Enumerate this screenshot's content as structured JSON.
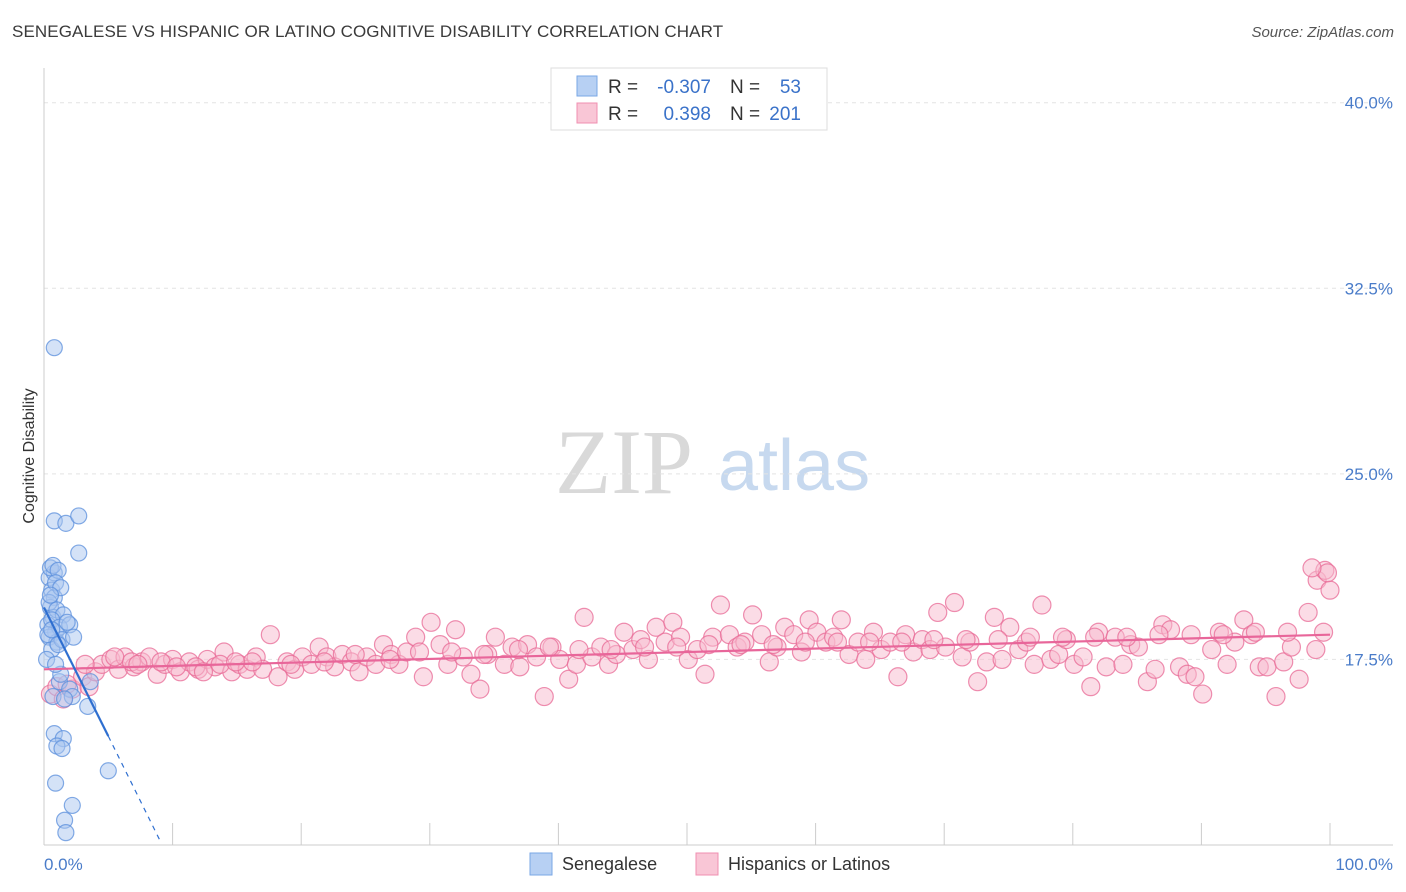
{
  "chart_data": {
    "type": "scatter",
    "title": "SENEGALESE VS HISPANIC OR LATINO COGNITIVE DISABILITY CORRELATION CHART",
    "source": "Source: ZipAtlas.com",
    "watermark": {
      "zip": "ZIP",
      "atlas": "atlas"
    },
    "xlabel": "",
    "ylabel": "Cognitive Disability",
    "xlim": [
      0,
      100
    ],
    "ylim": [
      10.0,
      41.0
    ],
    "x_tick_labels": {
      "min": "0.0%",
      "max": "100.0%"
    },
    "y_ticks": [
      {
        "value": 17.5,
        "label": "17.5%"
      },
      {
        "value": 25.0,
        "label": "25.0%"
      },
      {
        "value": 32.5,
        "label": "32.5%"
      },
      {
        "value": 40.0,
        "label": "40.0%"
      }
    ],
    "legend": {
      "rows": [
        {
          "r_label": "R =",
          "r_value": "-0.307",
          "n_label": "N =",
          "n_value": "53",
          "color": "#7aa7e6"
        },
        {
          "r_label": "R =",
          "r_value": "0.398",
          "n_label": "N =",
          "n_value": "201",
          "color": "#f08fb0"
        }
      ]
    },
    "series": [
      {
        "name": "Senegalese",
        "color": "#5b8fdc",
        "fill": "#a9c5f0",
        "trend": {
          "x0": 0.0,
          "y0": 19.6,
          "x1": 5.0,
          "y1": 14.4,
          "dash_to_x": 9.0,
          "dash_to_y": 10.2
        },
        "points": [
          [
            0.4,
            20.8
          ],
          [
            0.6,
            20.3
          ],
          [
            0.8,
            20.0
          ],
          [
            0.5,
            19.6
          ],
          [
            0.7,
            19.2
          ],
          [
            0.3,
            18.9
          ],
          [
            0.9,
            18.6
          ],
          [
            0.4,
            18.4
          ],
          [
            1.0,
            18.2
          ],
          [
            0.6,
            17.9
          ],
          [
            0.2,
            17.5
          ],
          [
            0.8,
            21.0
          ],
          [
            0.5,
            21.2
          ],
          [
            0.7,
            21.3
          ],
          [
            1.1,
            21.1
          ],
          [
            0.9,
            20.6
          ],
          [
            1.3,
            20.4
          ],
          [
            0.4,
            19.8
          ],
          [
            1.0,
            19.5
          ],
          [
            1.5,
            19.3
          ],
          [
            0.6,
            19.1
          ],
          [
            1.2,
            18.8
          ],
          [
            0.3,
            18.5
          ],
          [
            1.4,
            18.3
          ],
          [
            2.0,
            18.9
          ],
          [
            2.3,
            18.4
          ],
          [
            0.8,
            23.1
          ],
          [
            1.7,
            23.0
          ],
          [
            2.7,
            23.3
          ],
          [
            2.7,
            21.8
          ],
          [
            0.8,
            30.1
          ],
          [
            0.7,
            16.0
          ],
          [
            1.2,
            16.6
          ],
          [
            2.0,
            16.3
          ],
          [
            2.2,
            16.0
          ],
          [
            1.6,
            15.9
          ],
          [
            3.6,
            16.6
          ],
          [
            3.4,
            15.6
          ],
          [
            0.8,
            14.5
          ],
          [
            1.5,
            14.3
          ],
          [
            1.0,
            14.0
          ],
          [
            1.4,
            13.9
          ],
          [
            5.0,
            13.0
          ],
          [
            0.9,
            12.5
          ],
          [
            2.2,
            11.6
          ],
          [
            1.6,
            11.0
          ],
          [
            1.7,
            10.5
          ],
          [
            1.1,
            18.1
          ],
          [
            0.5,
            20.1
          ],
          [
            1.8,
            19.0
          ],
          [
            0.6,
            18.7
          ],
          [
            1.3,
            16.9
          ],
          [
            0.9,
            17.3
          ]
        ]
      },
      {
        "name": "Hispanics or Latinos",
        "color": "#e86a95",
        "fill": "#f7b9cd",
        "trend": {
          "x0": 0.0,
          "y0": 17.1,
          "x1": 100.0,
          "y1": 18.5
        },
        "points": [
          [
            0.5,
            16.1
          ],
          [
            1.0,
            16.4
          ],
          [
            1.5,
            15.9
          ],
          [
            2.2,
            16.3
          ],
          [
            3.0,
            16.8
          ],
          [
            3.5,
            16.4
          ],
          [
            4.0,
            17.0
          ],
          [
            4.5,
            17.3
          ],
          [
            5.2,
            17.5
          ],
          [
            5.8,
            17.1
          ],
          [
            6.3,
            17.6
          ],
          [
            7.0,
            17.2
          ],
          [
            7.6,
            17.4
          ],
          [
            8.2,
            17.6
          ],
          [
            8.8,
            16.9
          ],
          [
            9.4,
            17.3
          ],
          [
            10.0,
            17.5
          ],
          [
            10.6,
            17.0
          ],
          [
            11.3,
            17.4
          ],
          [
            12.0,
            17.1
          ],
          [
            12.7,
            17.5
          ],
          [
            13.3,
            17.2
          ],
          [
            14.0,
            17.8
          ],
          [
            14.6,
            17.0
          ],
          [
            15.2,
            17.3
          ],
          [
            15.8,
            17.1
          ],
          [
            16.5,
            17.6
          ],
          [
            17.0,
            17.1
          ],
          [
            17.6,
            18.5
          ],
          [
            18.2,
            16.8
          ],
          [
            18.9,
            17.4
          ],
          [
            19.5,
            17.1
          ],
          [
            20.1,
            17.6
          ],
          [
            20.8,
            17.3
          ],
          [
            21.4,
            18.0
          ],
          [
            22.0,
            17.6
          ],
          [
            22.6,
            17.2
          ],
          [
            23.2,
            17.7
          ],
          [
            23.9,
            17.4
          ],
          [
            24.5,
            17.0
          ],
          [
            25.1,
            17.6
          ],
          [
            25.8,
            17.3
          ],
          [
            26.4,
            18.1
          ],
          [
            27.0,
            17.7
          ],
          [
            27.6,
            17.3
          ],
          [
            28.2,
            17.8
          ],
          [
            28.9,
            18.4
          ],
          [
            29.5,
            16.8
          ],
          [
            30.1,
            19.0
          ],
          [
            30.8,
            18.1
          ],
          [
            31.4,
            17.3
          ],
          [
            32.0,
            18.7
          ],
          [
            32.6,
            17.6
          ],
          [
            33.2,
            16.9
          ],
          [
            33.9,
            16.3
          ],
          [
            34.5,
            17.7
          ],
          [
            35.1,
            18.4
          ],
          [
            35.8,
            17.3
          ],
          [
            36.4,
            18.0
          ],
          [
            37.0,
            17.2
          ],
          [
            37.6,
            18.1
          ],
          [
            38.3,
            17.6
          ],
          [
            38.9,
            16.0
          ],
          [
            39.5,
            18.0
          ],
          [
            40.1,
            17.5
          ],
          [
            40.8,
            16.7
          ],
          [
            41.4,
            17.3
          ],
          [
            42.0,
            19.2
          ],
          [
            42.6,
            17.6
          ],
          [
            43.3,
            18.0
          ],
          [
            43.9,
            17.3
          ],
          [
            44.5,
            17.7
          ],
          [
            45.1,
            18.6
          ],
          [
            45.8,
            17.9
          ],
          [
            46.4,
            18.3
          ],
          [
            47.0,
            17.5
          ],
          [
            47.6,
            18.8
          ],
          [
            48.3,
            18.2
          ],
          [
            48.9,
            19.0
          ],
          [
            49.5,
            18.4
          ],
          [
            50.1,
            17.5
          ],
          [
            50.8,
            17.9
          ],
          [
            51.4,
            16.9
          ],
          [
            52.0,
            18.4
          ],
          [
            52.6,
            19.7
          ],
          [
            53.3,
            18.5
          ],
          [
            53.9,
            18.0
          ],
          [
            54.5,
            18.2
          ],
          [
            55.1,
            19.3
          ],
          [
            55.8,
            18.5
          ],
          [
            56.4,
            17.4
          ],
          [
            57.0,
            18.0
          ],
          [
            57.6,
            18.8
          ],
          [
            58.3,
            18.5
          ],
          [
            58.9,
            17.8
          ],
          [
            59.5,
            19.1
          ],
          [
            60.1,
            18.6
          ],
          [
            60.8,
            18.2
          ],
          [
            61.4,
            18.4
          ],
          [
            62.0,
            19.1
          ],
          [
            62.6,
            17.7
          ],
          [
            63.3,
            18.2
          ],
          [
            63.9,
            17.5
          ],
          [
            64.5,
            18.6
          ],
          [
            65.1,
            17.9
          ],
          [
            65.8,
            18.2
          ],
          [
            66.4,
            16.8
          ],
          [
            67.0,
            18.5
          ],
          [
            67.6,
            17.8
          ],
          [
            68.3,
            18.3
          ],
          [
            68.9,
            17.9
          ],
          [
            69.5,
            19.4
          ],
          [
            70.1,
            18.0
          ],
          [
            70.8,
            19.8
          ],
          [
            71.4,
            17.6
          ],
          [
            72.0,
            18.2
          ],
          [
            72.6,
            16.6
          ],
          [
            73.3,
            17.4
          ],
          [
            73.9,
            19.2
          ],
          [
            74.5,
            17.5
          ],
          [
            75.1,
            18.8
          ],
          [
            75.8,
            17.9
          ],
          [
            76.4,
            18.2
          ],
          [
            77.0,
            17.3
          ],
          [
            77.6,
            19.7
          ],
          [
            78.3,
            17.5
          ],
          [
            78.9,
            17.7
          ],
          [
            79.5,
            18.3
          ],
          [
            80.1,
            17.3
          ],
          [
            80.8,
            17.6
          ],
          [
            81.4,
            16.4
          ],
          [
            82.0,
            18.6
          ],
          [
            82.6,
            17.2
          ],
          [
            83.3,
            18.4
          ],
          [
            83.9,
            17.3
          ],
          [
            84.5,
            18.1
          ],
          [
            85.1,
            18.0
          ],
          [
            85.8,
            16.6
          ],
          [
            86.4,
            17.1
          ],
          [
            87.0,
            18.9
          ],
          [
            87.6,
            18.7
          ],
          [
            88.3,
            17.2
          ],
          [
            88.9,
            16.9
          ],
          [
            89.5,
            16.8
          ],
          [
            90.1,
            16.1
          ],
          [
            90.8,
            17.9
          ],
          [
            91.4,
            18.6
          ],
          [
            92.0,
            17.3
          ],
          [
            92.6,
            18.2
          ],
          [
            93.3,
            19.1
          ],
          [
            93.9,
            18.5
          ],
          [
            94.5,
            17.2
          ],
          [
            95.1,
            17.2
          ],
          [
            95.8,
            16.0
          ],
          [
            96.4,
            17.4
          ],
          [
            97.0,
            18.0
          ],
          [
            97.6,
            16.7
          ],
          [
            98.3,
            19.4
          ],
          [
            98.9,
            17.9
          ],
          [
            99.5,
            18.6
          ],
          [
            99.0,
            20.7
          ],
          [
            99.6,
            21.1
          ],
          [
            100.0,
            20.3
          ],
          [
            99.8,
            21.0
          ],
          [
            98.6,
            21.2
          ],
          [
            1.8,
            16.5
          ],
          [
            3.2,
            17.3
          ],
          [
            6.8,
            17.4
          ],
          [
            9.1,
            17.4
          ],
          [
            11.8,
            17.2
          ],
          [
            13.7,
            17.3
          ],
          [
            16.2,
            17.4
          ],
          [
            19.2,
            17.3
          ],
          [
            21.8,
            17.4
          ],
          [
            24.2,
            17.7
          ],
          [
            26.9,
            17.5
          ],
          [
            29.2,
            17.8
          ],
          [
            31.7,
            17.8
          ],
          [
            34.2,
            17.7
          ],
          [
            36.9,
            17.9
          ],
          [
            39.3,
            18.0
          ],
          [
            41.6,
            17.9
          ],
          [
            44.1,
            17.9
          ],
          [
            46.7,
            18.0
          ],
          [
            49.2,
            18.0
          ],
          [
            51.7,
            18.1
          ],
          [
            54.2,
            18.1
          ],
          [
            56.7,
            18.1
          ],
          [
            59.2,
            18.2
          ],
          [
            61.7,
            18.2
          ],
          [
            64.2,
            18.2
          ],
          [
            66.7,
            18.2
          ],
          [
            69.2,
            18.3
          ],
          [
            71.7,
            18.3
          ],
          [
            74.2,
            18.3
          ],
          [
            76.7,
            18.4
          ],
          [
            79.2,
            18.4
          ],
          [
            81.7,
            18.4
          ],
          [
            84.2,
            18.4
          ],
          [
            86.7,
            18.5
          ],
          [
            89.2,
            18.5
          ],
          [
            91.7,
            18.5
          ],
          [
            94.2,
            18.6
          ],
          [
            96.7,
            18.6
          ],
          [
            5.5,
            17.6
          ],
          [
            7.3,
            17.3
          ],
          [
            10.3,
            17.2
          ],
          [
            12.4,
            17.0
          ],
          [
            14.9,
            17.4
          ]
        ]
      }
    ]
  }
}
